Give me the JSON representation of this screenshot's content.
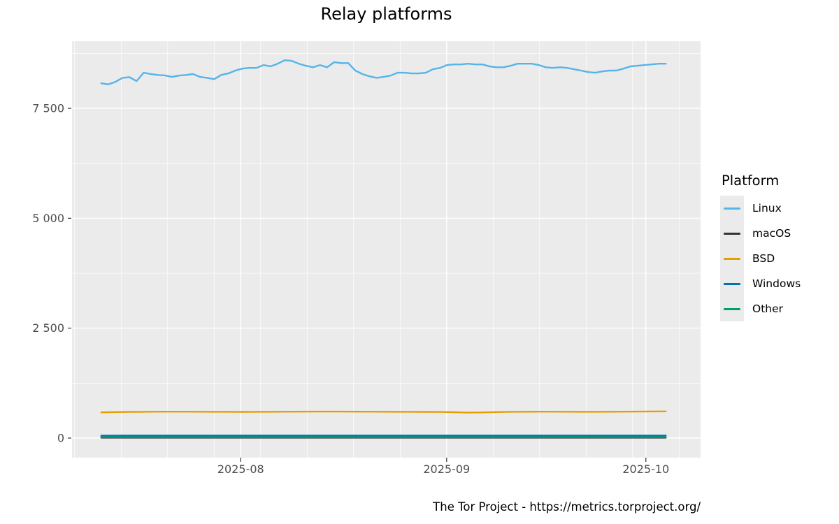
{
  "title": "Relay platforms",
  "caption": "The Tor Project - https://metrics.torproject.org/",
  "legend": {
    "title": "Platform",
    "position": "right"
  },
  "colors": {
    "panel_background": "#EBEBEB",
    "gridline": "#FFFFFF",
    "axis_text": "#4D4D4D",
    "tick_mark": "#333333"
  },
  "chart_data": {
    "type": "line",
    "title": "Relay platforms",
    "xlabel": "",
    "ylabel": "",
    "x_start": "2025-07-11",
    "x_end": "2025-10-05",
    "ylim": [
      0,
      9000
    ],
    "grid": "white major+minor gridlines on gray panel, weekly x minors",
    "legend_position": "right",
    "panel_bg": "#EBEBEB",
    "x_ticks": [
      {
        "label": "2025-08",
        "day": 21
      },
      {
        "label": "2025-09",
        "day": 52
      },
      {
        "label": "2025-10",
        "day": 82
      }
    ],
    "x_minor_days": [
      -4,
      3,
      10,
      17,
      24,
      31,
      38,
      45,
      59,
      66,
      73,
      80,
      87
    ],
    "y_ticks": [
      {
        "label": "0",
        "value": 0
      },
      {
        "label": "2 500",
        "value": 2500
      },
      {
        "label": "5 000",
        "value": 5000
      },
      {
        "label": "7 500",
        "value": 7500
      }
    ],
    "y_minor_values": [
      1250,
      3750,
      6250,
      8750
    ],
    "series": [
      {
        "name": "Linux",
        "color": "#56B4E9",
        "values": [
          8070,
          8045,
          8100,
          8195,
          8210,
          8120,
          8310,
          8280,
          8260,
          8250,
          8215,
          8245,
          8260,
          8280,
          8215,
          8195,
          8165,
          8260,
          8295,
          8360,
          8405,
          8420,
          8420,
          8485,
          8455,
          8515,
          8595,
          8580,
          8515,
          8470,
          8435,
          8485,
          8435,
          8550,
          8530,
          8530,
          8360,
          8280,
          8230,
          8195,
          8215,
          8245,
          8310,
          8310,
          8295,
          8295,
          8310,
          8390,
          8420,
          8485,
          8500,
          8500,
          8515,
          8500,
          8500,
          8455,
          8435,
          8435,
          8470,
          8515,
          8515,
          8515,
          8485,
          8435,
          8420,
          8435,
          8420,
          8390,
          8360,
          8325,
          8310,
          8340,
          8360,
          8360,
          8405,
          8455,
          8470,
          8485,
          8500,
          8515,
          8515
        ]
      },
      {
        "name": "macOS",
        "color": "#333333",
        "values": [
          10,
          10,
          10,
          10,
          10,
          10,
          10,
          10,
          10,
          10,
          10,
          10,
          10,
          10,
          10,
          10,
          10,
          10,
          10,
          10,
          10
        ]
      },
      {
        "name": "BSD",
        "color": "#E69F00",
        "values": [
          585,
          592,
          596,
          598,
          600,
          601,
          600,
          599,
          598,
          597,
          596,
          597,
          598,
          600,
          601,
          602,
          603,
          602,
          601,
          600,
          599,
          598,
          597,
          596,
          594,
          588,
          578,
          584,
          592,
          597,
          599,
          600,
          600,
          599,
          598,
          598,
          599,
          601,
          603,
          605,
          607
        ]
      },
      {
        "name": "Windows",
        "color": "#0072B2",
        "values": [
          54,
          55,
          55,
          56,
          55,
          55,
          56,
          56,
          55,
          55,
          56,
          56,
          57,
          56,
          55,
          55,
          56,
          56,
          57,
          57,
          56
        ]
      },
      {
        "name": "Other",
        "color": "#009E73",
        "values": [
          20,
          20,
          21,
          21,
          20,
          20,
          21,
          21,
          22,
          21,
          21,
          20,
          20,
          21,
          21,
          21,
          22,
          22,
          21,
          21,
          21
        ]
      }
    ]
  }
}
